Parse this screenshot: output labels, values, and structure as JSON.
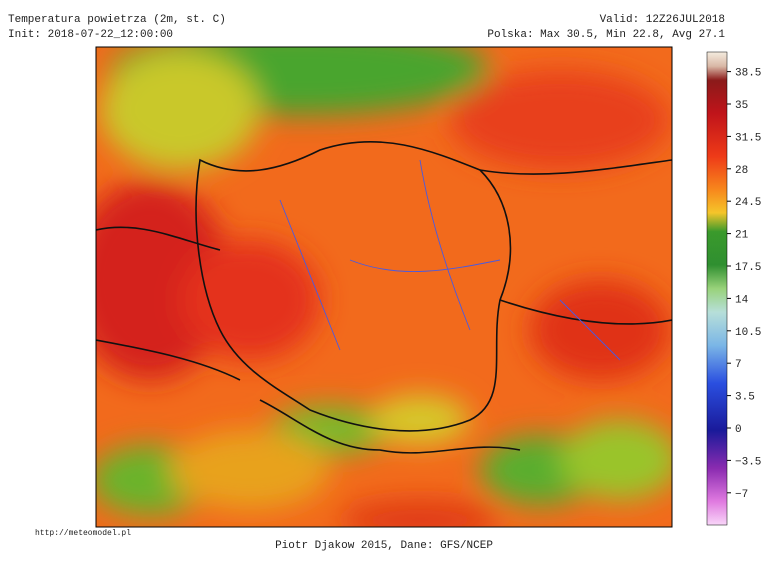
{
  "header": {
    "title": "Temperatura powietrza (2m, st. C)",
    "init": "Init: 2018-07-22_12:00:00",
    "valid": "Valid: 12Z26JUL2018",
    "stats": "Polska: Max 30.5, Min 22.8, Avg 27.1"
  },
  "colorbar": {
    "ticks": [
      38.5,
      35,
      31.5,
      28,
      24.5,
      21,
      17.5,
      14,
      10.5,
      7,
      3.5,
      0,
      {
        "value": -3.5,
        "label": "−3.5"
      },
      {
        "value": -7,
        "label": "−7"
      }
    ]
  },
  "footer": {
    "url": "http://meteomodel.pl",
    "credit": "Piotr Djakow 2015, Dane: GFS/NCEP"
  }
}
